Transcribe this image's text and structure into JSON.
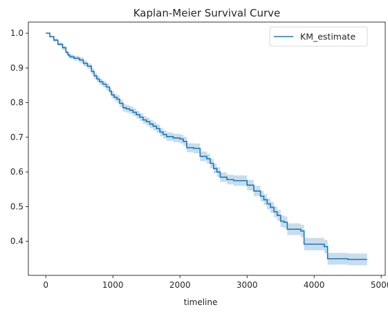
{
  "chart_data": {
    "type": "line",
    "title": "Kaplan-Meier Survival Curve",
    "xlabel": "timeline",
    "ylabel": "",
    "xlim": [
      -260,
      5060
    ],
    "ylim": [
      0.302,
      1.032
    ],
    "xticks": [
      0,
      1000,
      2000,
      3000,
      4000,
      5000
    ],
    "xtick_labels": [
      "0",
      "1000",
      "2000",
      "3000",
      "4000",
      "5000"
    ],
    "yticks": [
      0.4,
      0.5,
      0.6,
      0.7,
      0.8,
      0.9,
      1.0
    ],
    "ytick_labels": [
      "0.4",
      "0.5",
      "0.6",
      "0.7",
      "0.8",
      "0.9",
      "1.0"
    ],
    "grid": false,
    "legend": {
      "position": "top-right",
      "entries": [
        "KM_estimate"
      ]
    },
    "series": [
      {
        "name": "KM_estimate",
        "color": "#1f77b4",
        "band_color": "#1f77b4",
        "x": [
          0,
          60,
          120,
          180,
          250,
          300,
          330,
          360,
          420,
          500,
          560,
          620,
          680,
          720,
          760,
          800,
          850,
          900,
          950,
          980,
          1020,
          1060,
          1100,
          1150,
          1200,
          1250,
          1300,
          1350,
          1400,
          1450,
          1500,
          1550,
          1600,
          1650,
          1700,
          1750,
          1800,
          1900,
          2000,
          2050,
          2100,
          2200,
          2300,
          2400,
          2450,
          2500,
          2550,
          2600,
          2700,
          2800,
          3000,
          3100,
          3200,
          3250,
          3300,
          3350,
          3400,
          3450,
          3500,
          3550,
          3600,
          3800,
          3850,
          4150,
          4200,
          4500,
          4790
        ],
        "y": [
          1.0,
          0.99,
          0.98,
          0.968,
          0.958,
          0.945,
          0.937,
          0.932,
          0.928,
          0.923,
          0.913,
          0.905,
          0.89,
          0.877,
          0.868,
          0.86,
          0.853,
          0.845,
          0.833,
          0.822,
          0.815,
          0.81,
          0.798,
          0.785,
          0.782,
          0.778,
          0.772,
          0.765,
          0.758,
          0.75,
          0.745,
          0.738,
          0.732,
          0.725,
          0.715,
          0.708,
          0.702,
          0.698,
          0.695,
          0.688,
          0.67,
          0.668,
          0.645,
          0.638,
          0.625,
          0.61,
          0.6,
          0.585,
          0.578,
          0.575,
          0.562,
          0.545,
          0.53,
          0.52,
          0.508,
          0.498,
          0.485,
          0.475,
          0.458,
          0.455,
          0.435,
          0.43,
          0.392,
          0.385,
          0.35,
          0.348,
          0.348
        ],
        "ci_lower": [
          1.0,
          0.987,
          0.976,
          0.963,
          0.952,
          0.939,
          0.93,
          0.925,
          0.921,
          0.915,
          0.905,
          0.897,
          0.881,
          0.868,
          0.859,
          0.851,
          0.844,
          0.835,
          0.823,
          0.812,
          0.805,
          0.799,
          0.787,
          0.774,
          0.771,
          0.767,
          0.761,
          0.754,
          0.747,
          0.739,
          0.733,
          0.726,
          0.72,
          0.713,
          0.703,
          0.696,
          0.69,
          0.686,
          0.682,
          0.675,
          0.657,
          0.654,
          0.631,
          0.624,
          0.611,
          0.596,
          0.586,
          0.571,
          0.564,
          0.56,
          0.547,
          0.53,
          0.515,
          0.504,
          0.492,
          0.482,
          0.469,
          0.459,
          0.441,
          0.438,
          0.418,
          0.412,
          0.374,
          0.366,
          0.333,
          0.331,
          0.338
        ],
        "ci_upper": [
          1.0,
          0.993,
          0.984,
          0.973,
          0.964,
          0.951,
          0.944,
          0.939,
          0.935,
          0.931,
          0.921,
          0.913,
          0.899,
          0.886,
          0.877,
          0.869,
          0.862,
          0.855,
          0.843,
          0.832,
          0.825,
          0.821,
          0.809,
          0.796,
          0.793,
          0.789,
          0.783,
          0.776,
          0.769,
          0.761,
          0.757,
          0.75,
          0.744,
          0.737,
          0.727,
          0.72,
          0.714,
          0.71,
          0.708,
          0.701,
          0.683,
          0.682,
          0.659,
          0.652,
          0.639,
          0.624,
          0.614,
          0.599,
          0.592,
          0.59,
          0.577,
          0.56,
          0.545,
          0.536,
          0.524,
          0.514,
          0.501,
          0.491,
          0.475,
          0.472,
          0.452,
          0.448,
          0.41,
          0.404,
          0.367,
          0.365,
          0.358
        ]
      }
    ]
  }
}
